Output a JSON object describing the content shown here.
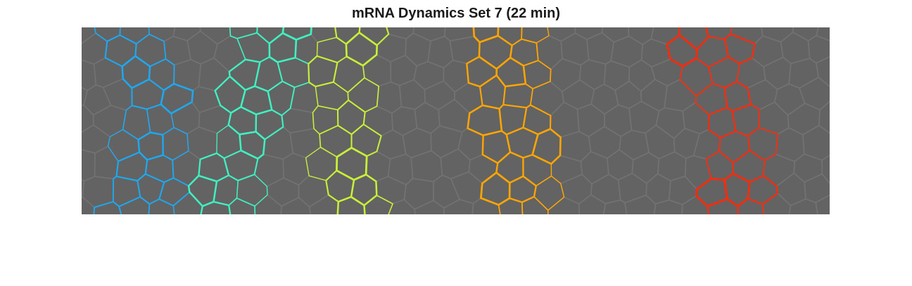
{
  "figure": {
    "title": "mRNA Dynamics Set 7 (22 min)"
  },
  "image": {
    "background_color": "#636363",
    "faint_cell_edge_color": "#727272",
    "stripes": [
      {
        "name": "blue-stripe",
        "color": "#1ea8f0",
        "center": 0.07
      },
      {
        "name": "teal-stripe",
        "color": "#40f0c0",
        "center": 0.23
      },
      {
        "name": "yellow-green-stripe",
        "color": "#c8f038",
        "center": 0.36
      },
      {
        "name": "orange-stripe",
        "color": "#ffa500",
        "center": 0.59
      },
      {
        "name": "red-stripe",
        "color": "#ff2a0a",
        "center": 0.85
      }
    ]
  }
}
